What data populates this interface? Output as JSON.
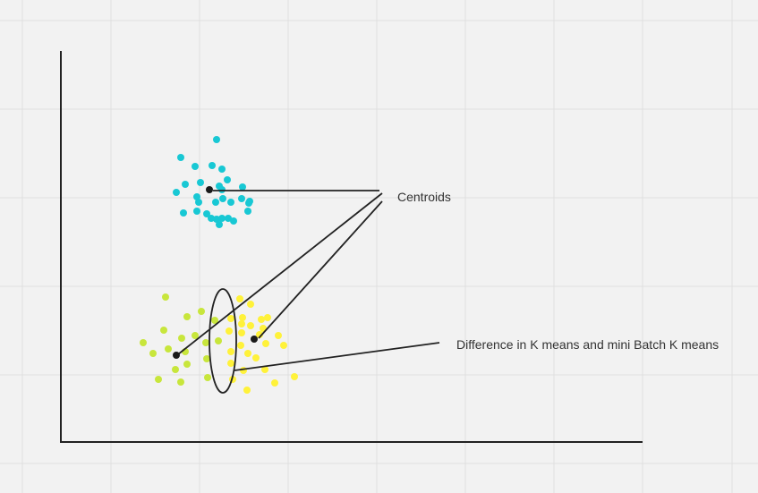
{
  "colors": {
    "background": "#f2f2f2",
    "grid": "#e0e0e0",
    "axis": "#222222",
    "centroid": "#1a1a1a",
    "leader": "#222222",
    "text": "#333333",
    "cluster_cyan": "#18c8d4",
    "cluster_lime": "#c8e63c",
    "cluster_yellow": "#fff23a"
  },
  "annotations": {
    "centroids_label": "Centroids",
    "difference_label": "Difference in K means and mini Batch K means"
  },
  "chart_data": {
    "type": "scatter",
    "title": "",
    "xlabel": "",
    "ylabel": "",
    "series": [
      {
        "color": "#18c8d4",
        "points": [
          [
            242,
            156
          ],
          [
            202,
            176
          ],
          [
            218,
            186
          ],
          [
            237,
            185
          ],
          [
            248,
            189
          ],
          [
            224,
            204
          ],
          [
            207,
            206
          ],
          [
            254,
            201
          ],
          [
            197,
            215
          ],
          [
            220,
            220
          ],
          [
            245,
            208
          ],
          [
            271,
            209
          ],
          [
            248,
            212
          ],
          [
            270,
            222
          ],
          [
            279,
            225
          ],
          [
            241,
            226
          ],
          [
            258,
            226
          ],
          [
            222,
            226
          ],
          [
            278,
            227
          ],
          [
            249,
            222
          ],
          [
            205,
            238
          ],
          [
            220,
            236
          ],
          [
            231,
            239
          ],
          [
            277,
            236
          ],
          [
            236,
            244
          ],
          [
            242,
            245
          ],
          [
            248,
            244
          ],
          [
            255,
            244
          ],
          [
            261,
            247
          ],
          [
            245,
            251
          ]
        ]
      },
      {
        "color": "#c8e63c",
        "points": [
          [
            185,
            332
          ],
          [
            225,
            348
          ],
          [
            209,
            354
          ],
          [
            240,
            358
          ],
          [
            183,
            369
          ],
          [
            203,
            378
          ],
          [
            218,
            375
          ],
          [
            160,
            383
          ],
          [
            230,
            383
          ],
          [
            188,
            390
          ],
          [
            171,
            395
          ],
          [
            207,
            393
          ],
          [
            231,
            401
          ],
          [
            209,
            407
          ],
          [
            196,
            413
          ],
          [
            177,
            424
          ],
          [
            202,
            427
          ],
          [
            232,
            422
          ],
          [
            244,
            381
          ]
        ]
      },
      {
        "color": "#fff23a",
        "points": [
          [
            268,
            334
          ],
          [
            280,
            340
          ],
          [
            258,
            356
          ],
          [
            271,
            355
          ],
          [
            292,
            357
          ],
          [
            299,
            355
          ],
          [
            270,
            362
          ],
          [
            280,
            364
          ],
          [
            294,
            367
          ],
          [
            256,
            370
          ],
          [
            270,
            372
          ],
          [
            290,
            374
          ],
          [
            311,
            375
          ],
          [
            297,
            384
          ],
          [
            269,
            386
          ],
          [
            317,
            386
          ],
          [
            258,
            393
          ],
          [
            277,
            395
          ],
          [
            286,
            400
          ],
          [
            258,
            406
          ],
          [
            296,
            413
          ],
          [
            272,
            414
          ],
          [
            260,
            424
          ],
          [
            307,
            428
          ],
          [
            276,
            436
          ],
          [
            329,
            421
          ]
        ]
      }
    ],
    "centroids": [
      [
        234,
        212
      ],
      [
        197,
        397
      ],
      [
        284,
        379
      ]
    ]
  }
}
